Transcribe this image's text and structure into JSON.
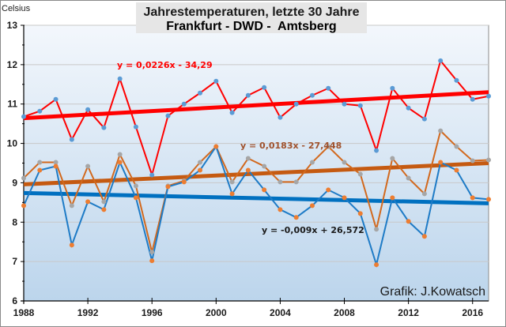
{
  "chart_data": {
    "type": "line",
    "title": "Jahrestemperaturen,  letzte 30 Jahre",
    "subtitle_parts": [
      {
        "text": "Frankfurt",
        "color": "#ff0000"
      },
      {
        "text": " - ",
        "color": "#1a1a1a"
      },
      {
        "text": "DWD - ",
        "color": "#d2691e"
      },
      {
        "text": " Amtsberg",
        "color": "#1e7bc6"
      }
    ],
    "ylabel": "Celsius",
    "xlabel": "",
    "ylim": [
      6,
      13
    ],
    "xlim": [
      1988,
      2017
    ],
    "yticks": [
      6,
      7,
      8,
      9,
      10,
      11,
      12,
      13
    ],
    "xticks": [
      1988,
      1992,
      1996,
      2000,
      2004,
      2008,
      2012,
      2016
    ],
    "grid": true,
    "x": [
      1988,
      1989,
      1990,
      1991,
      1992,
      1993,
      1994,
      1995,
      1996,
      1997,
      1998,
      1999,
      2000,
      2001,
      2002,
      2003,
      2004,
      2005,
      2006,
      2007,
      2008,
      2009,
      2010,
      2011,
      2012,
      2013,
      2014,
      2015,
      2016,
      2017
    ],
    "series": [
      {
        "name": "Frankfurt",
        "color": "#ff0000",
        "marker_color": "#5b9bd5",
        "values": [
          10.68,
          10.82,
          11.12,
          10.1,
          10.86,
          10.4,
          11.64,
          10.42,
          9.2,
          10.7,
          11.0,
          11.28,
          11.58,
          10.78,
          11.22,
          11.42,
          10.66,
          11.0,
          11.22,
          11.4,
          11.0,
          10.96,
          9.82,
          11.4,
          10.9,
          10.62,
          12.1,
          11.6,
          11.12,
          11.2
        ],
        "trend": {
          "label": "y = 0,0226x - 34,29",
          "start": 10.64,
          "end": 11.3,
          "color": "#ff0000"
        }
      },
      {
        "name": "DWD",
        "color": "#d2691e",
        "marker_color": "#a6a6a6",
        "values": [
          9.12,
          9.52,
          9.52,
          8.42,
          9.42,
          8.52,
          9.72,
          8.92,
          7.24,
          8.92,
          9.05,
          9.52,
          9.92,
          9.02,
          9.62,
          9.42,
          9.02,
          9.02,
          9.52,
          9.92,
          9.52,
          9.22,
          7.82,
          9.62,
          9.12,
          8.72,
          10.32,
          9.92,
          9.56,
          9.58
        ],
        "trend": {
          "label": "y = 0,0183x - 27,448",
          "start": 8.96,
          "end": 9.5,
          "color": "#c55a11"
        }
      },
      {
        "name": "Amtsberg",
        "color": "#1e7bc6",
        "marker_color": "#ed7d31",
        "values": [
          8.42,
          9.32,
          9.42,
          7.42,
          8.52,
          8.32,
          9.52,
          8.62,
          7.02,
          8.9,
          9.02,
          9.32,
          9.92,
          8.72,
          9.32,
          8.82,
          8.32,
          8.12,
          8.42,
          8.82,
          8.62,
          8.22,
          6.92,
          8.62,
          8.02,
          7.64,
          9.52,
          9.32,
          8.62,
          8.58
        ],
        "trend": {
          "label": "y = -0,009x + 26,572",
          "start": 8.74,
          "end": 8.48,
          "color": "#0070c0"
        }
      }
    ],
    "annotations": [
      "Grafik: J.Kowatsch"
    ]
  },
  "credit": "Grafik: J.Kowatsch"
}
